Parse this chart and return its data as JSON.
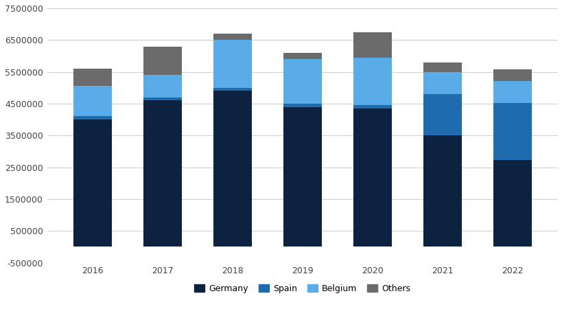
{
  "years": [
    2016,
    2017,
    2018,
    2019,
    2020,
    2021,
    2022
  ],
  "germany": [
    4000000,
    4600000,
    4900000,
    4400000,
    4350000,
    3500000,
    2720000
  ],
  "spain": [
    100000,
    100000,
    100000,
    100000,
    100000,
    1300000,
    1800000
  ],
  "belgium": [
    950000,
    700000,
    1500000,
    1400000,
    1500000,
    700000,
    700000
  ],
  "others": [
    550000,
    900000,
    200000,
    200000,
    800000,
    300000,
    350000
  ],
  "colors": {
    "germany": "#0d2240",
    "spain": "#1e6bb0",
    "belgium": "#5aace8",
    "others": "#6b6b6b"
  },
  "ylim": [
    -500000,
    7500000
  ],
  "yticks": [
    -500000,
    500000,
    1500000,
    2500000,
    3500000,
    4500000,
    5500000,
    6500000,
    7500000
  ],
  "ytick_labels": [
    "-500000",
    "500000",
    "1500000",
    "2500000",
    "3500000",
    "4500000",
    "5500000",
    "6500000",
    "7500000"
  ],
  "background_color": "#ffffff",
  "grid_color": "#d0d0d0",
  "bar_width": 0.55
}
